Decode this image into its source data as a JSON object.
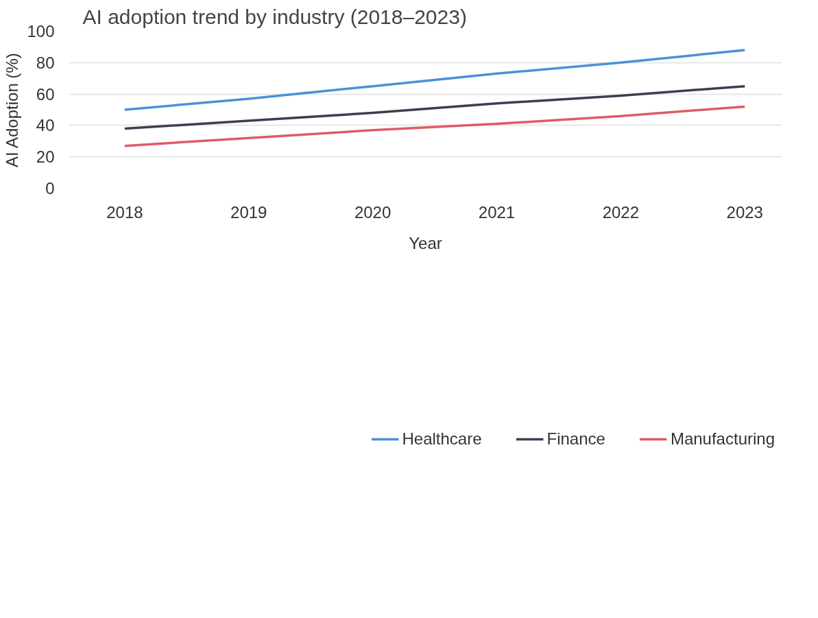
{
  "chart_data": {
    "type": "line",
    "title": "AI adoption trend by industry (2018–2023)",
    "xlabel": "Year",
    "ylabel": "AI Adoption (%)",
    "x": [
      2018,
      2019,
      2020,
      2021,
      2022,
      2023
    ],
    "series": [
      {
        "name": "Healthcare",
        "color": "#4a90d9",
        "values": [
          50,
          57,
          65,
          73,
          80,
          88
        ]
      },
      {
        "name": "Finance",
        "color": "#3a3f50",
        "values": [
          38,
          43,
          48,
          54,
          59,
          65
        ]
      },
      {
        "name": "Manufacturing",
        "color": "#e05a66",
        "values": [
          27,
          32,
          37,
          41,
          46,
          52
        ]
      }
    ],
    "xlim": [
      2017.55,
      2023.3
    ],
    "xticks": [
      2018,
      2019,
      2020,
      2021,
      2022,
      2023
    ],
    "ylim": [
      0,
      100
    ],
    "yticks": [
      0,
      20,
      40,
      60,
      80,
      100
    ],
    "grid": "y",
    "legend": "bottom",
    "marker": "none",
    "line_style": "solid"
  }
}
